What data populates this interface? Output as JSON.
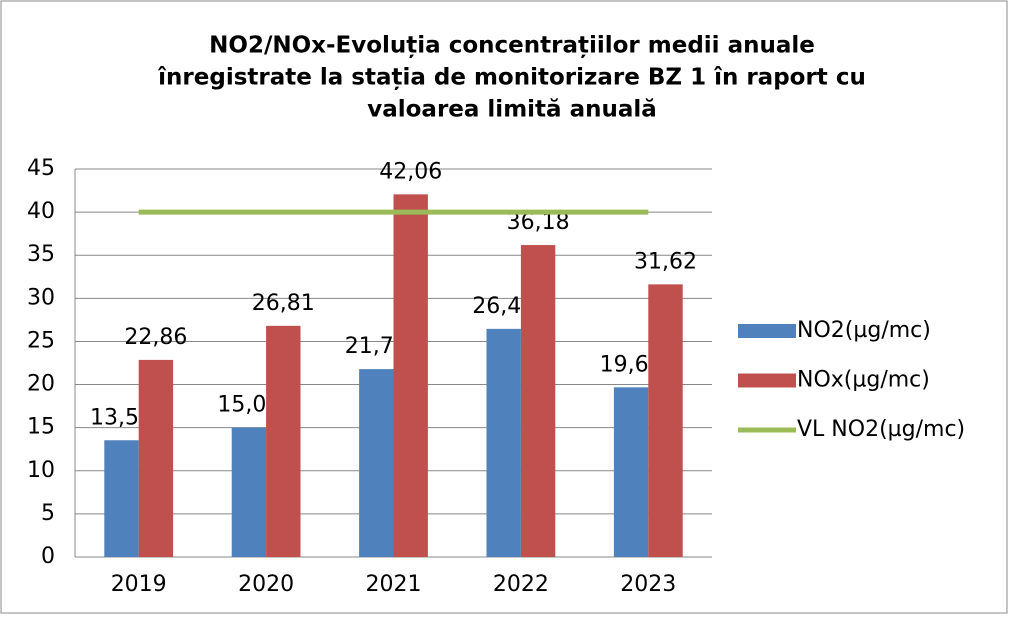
{
  "chart_data": {
    "type": "bar",
    "title": [
      "NO2/NOx-Evoluția concentrațiilor medii anuale",
      "înregistrate la stația de monitorizare BZ 1 în raport cu",
      "valoarea limită anuală"
    ],
    "categories": [
      "2019",
      "2020",
      "2021",
      "2022",
      "2023"
    ],
    "series": [
      {
        "name": "NO2(µg/mc)",
        "color": "#4f81bd",
        "type": "bar",
        "values": [
          13.54,
          15.01,
          21.79,
          26.46,
          19.68
        ],
        "value_labels": [
          "13,54",
          "15,01",
          "21,79",
          "26,46",
          "19,68"
        ]
      },
      {
        "name": "NOx(µg/mc)",
        "color": "#c0504d",
        "type": "bar",
        "values": [
          22.86,
          26.81,
          42.06,
          36.18,
          31.62
        ],
        "value_labels": [
          "22,86",
          "26,81",
          "42,06",
          "36,18",
          "31,62"
        ]
      },
      {
        "name": "VL NO2(µg/mc)",
        "color": "#9bbb59",
        "type": "line",
        "values": [
          40,
          40,
          40,
          40,
          40
        ]
      }
    ],
    "ylim": [
      0,
      45
    ],
    "yticks": [
      0,
      5,
      10,
      15,
      20,
      25,
      30,
      35,
      40,
      45
    ],
    "grid": true,
    "legend": "right"
  }
}
